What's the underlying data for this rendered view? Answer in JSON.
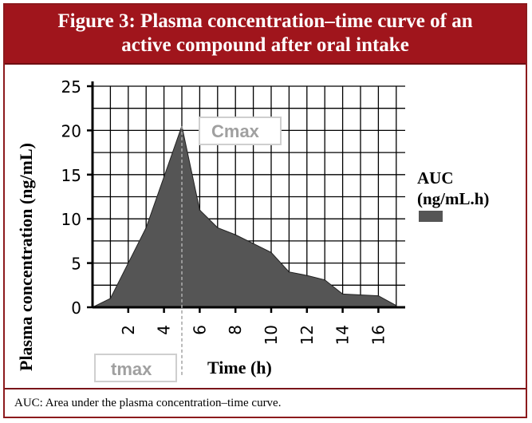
{
  "figure": {
    "title_line1": "Figure 3: Plasma concentration–time curve of an",
    "title_line2": "active compound after oral intake",
    "footnote": "AUC: Area under the plasma concentration–time curve.",
    "header_color": "#a0151c"
  },
  "chart_data": {
    "type": "area",
    "xlabel": "Time (h)",
    "ylabel": "Plasma concentration (ng/mL)",
    "xlim": [
      0,
      17.5
    ],
    "ylim": [
      0,
      25
    ],
    "x_ticks": [
      2,
      4,
      6,
      8,
      10,
      12,
      14,
      16
    ],
    "y_ticks": [
      0,
      5,
      10,
      15,
      20,
      25
    ],
    "grid": true,
    "series": [
      {
        "name": "AUC (ng/mL.h)",
        "color": "#555555",
        "x": [
          0,
          1,
          3,
          5,
          6,
          7,
          8,
          9,
          10,
          11,
          12,
          13,
          14,
          15,
          16,
          17
        ],
        "y": [
          0,
          1,
          9,
          20.5,
          11,
          9,
          8.2,
          7.2,
          6.2,
          4,
          3.6,
          3.1,
          1.5,
          1.4,
          1.3,
          0.2
        ]
      }
    ],
    "legend": {
      "label_line1": "AUC",
      "label_line2": "(ng/mL.h)",
      "placement": "right"
    },
    "annotations": {
      "cmax_label": "Cmax",
      "tmax_label": "tmax",
      "tmax_value": 5,
      "cmax_value": 20.5
    }
  }
}
